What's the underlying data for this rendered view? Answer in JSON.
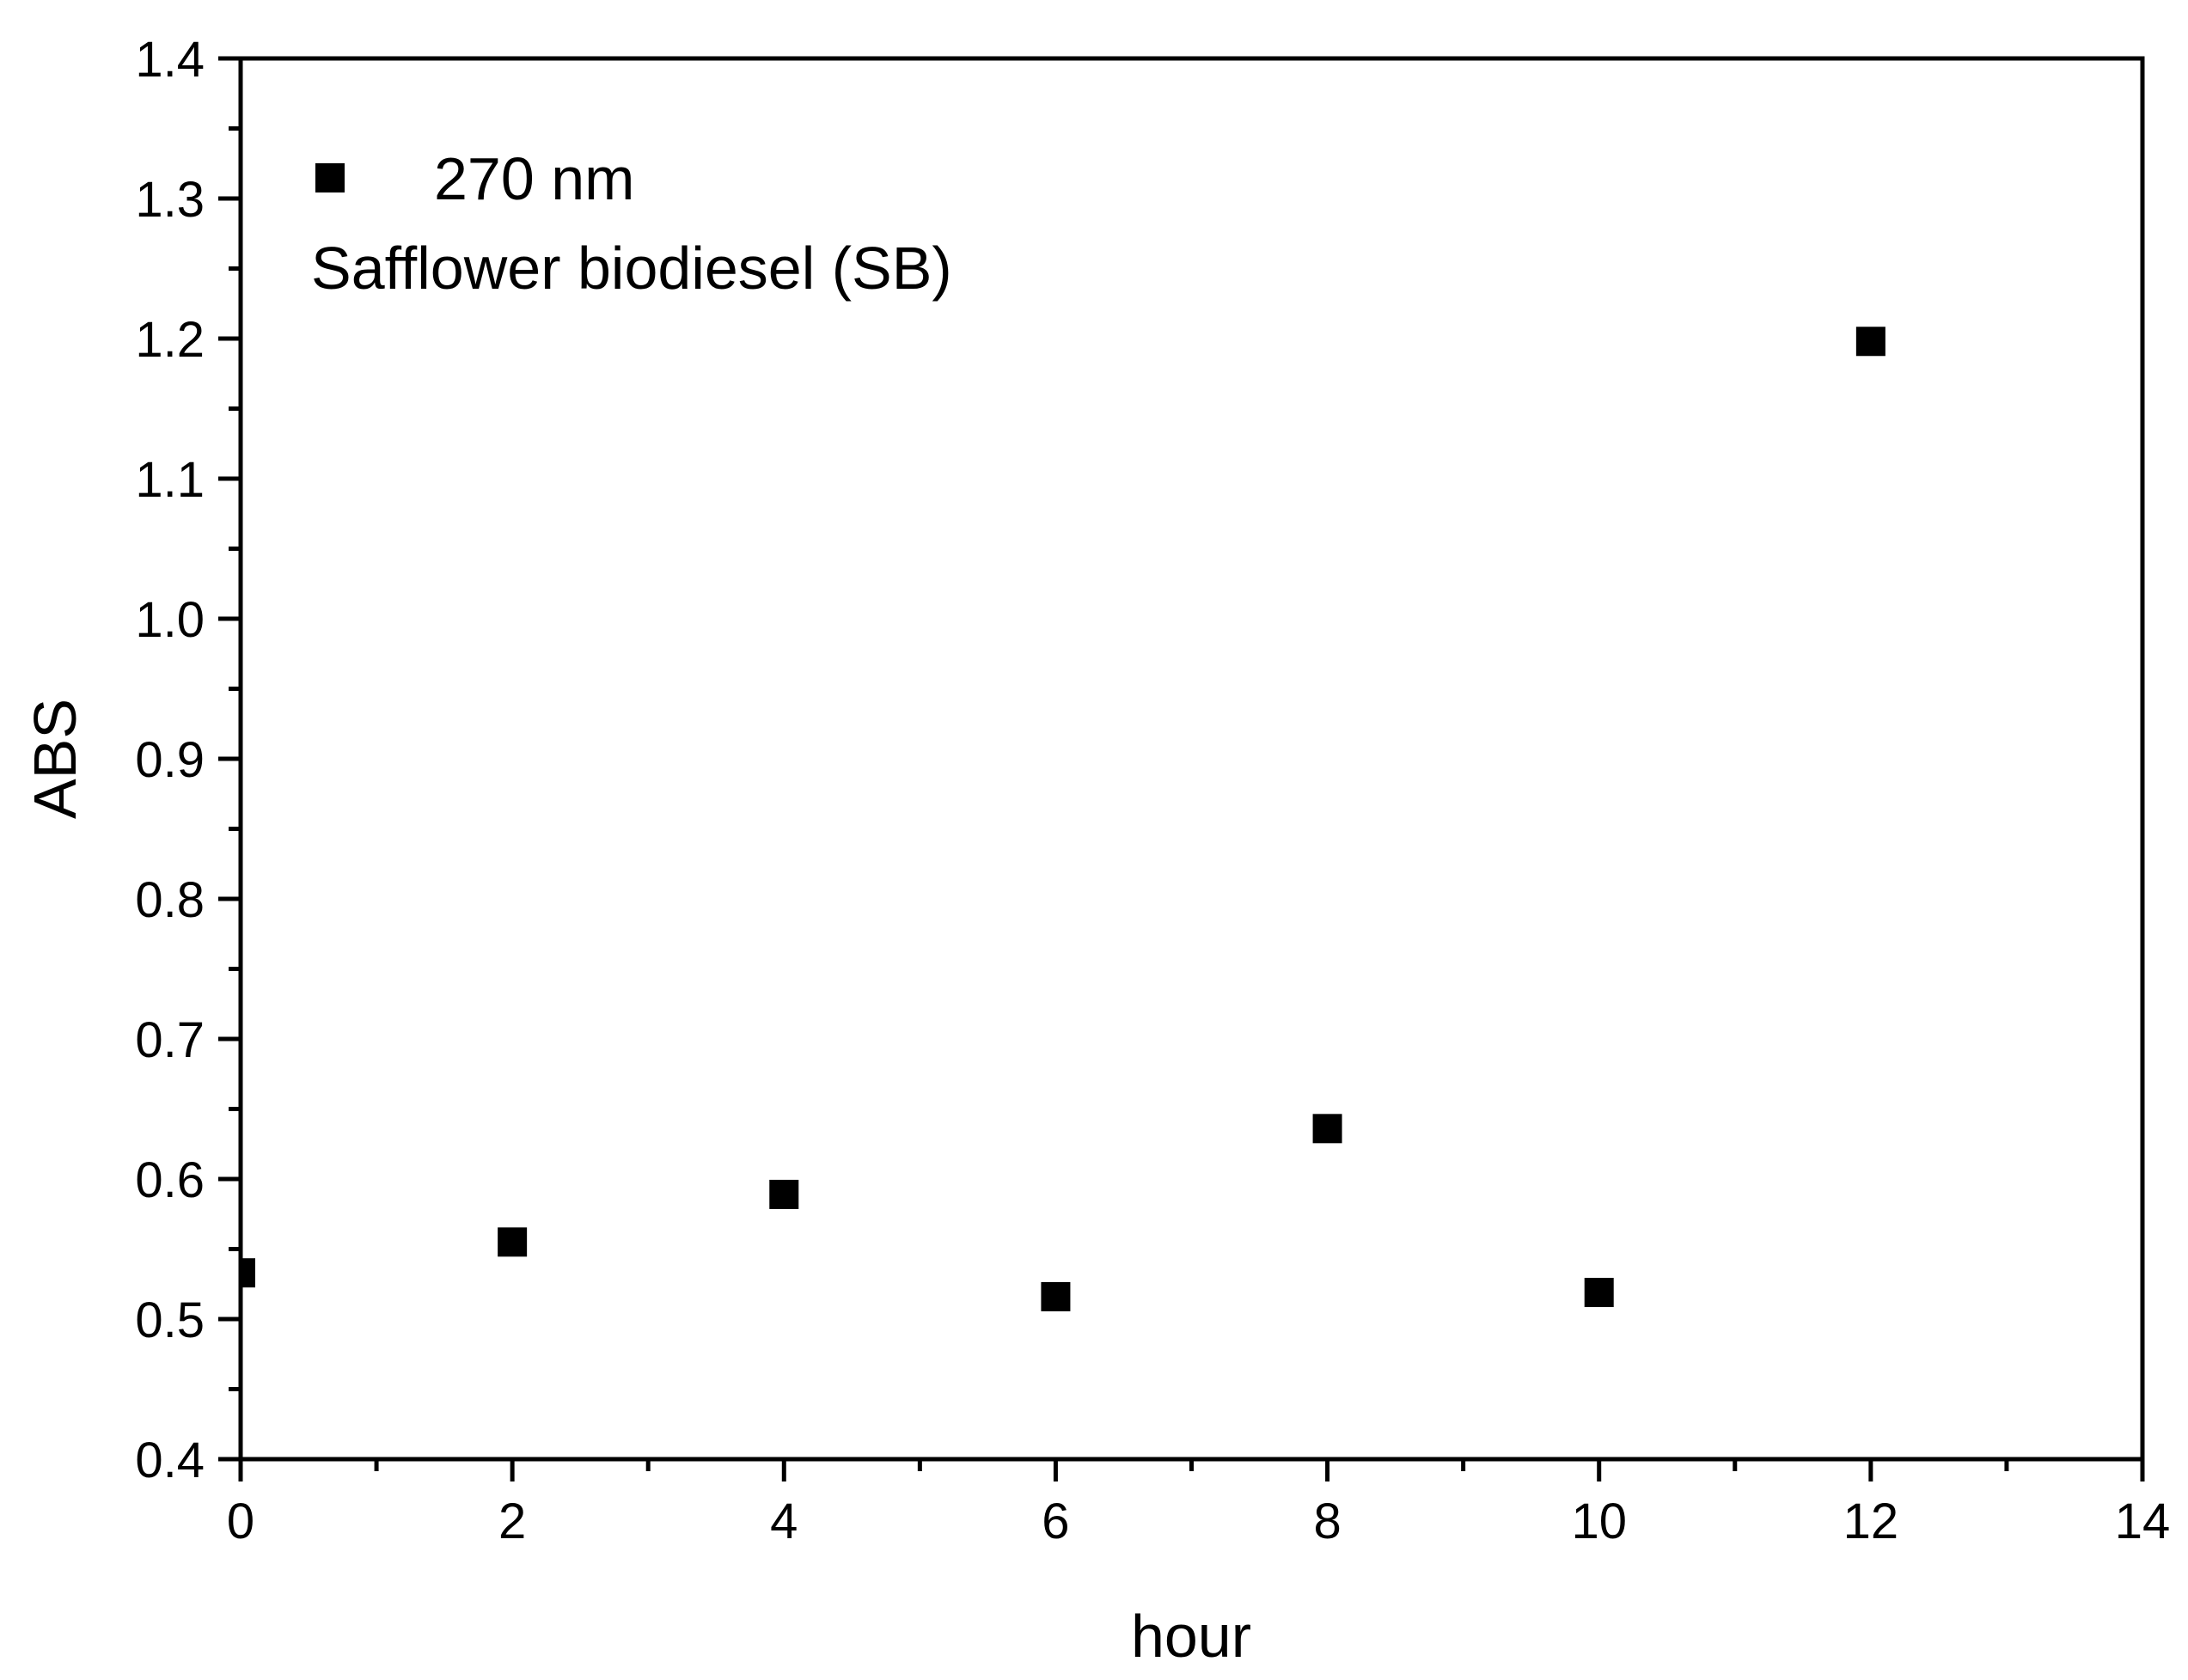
{
  "chart_data": {
    "type": "scatter",
    "xlabel": "hour",
    "ylabel": "ABS",
    "xlim": [
      0,
      14
    ],
    "ylim": [
      0.4,
      1.4
    ],
    "x_ticks": [
      "0",
      "2",
      "4",
      "6",
      "8",
      "10",
      "12",
      "14"
    ],
    "y_ticks": [
      "0.4",
      "0.5",
      "0.6",
      "0.7",
      "0.8",
      "0.9",
      "1.0",
      "1.1",
      "1.2",
      "1.3",
      "1.4"
    ],
    "grid": false,
    "legend_position": "top-left",
    "series": [
      {
        "name": "270 nm",
        "marker": "square",
        "color": "#000000",
        "x": [
          0,
          2,
          4,
          6,
          8,
          10,
          12
        ],
        "y": [
          0.533,
          0.555,
          0.589,
          0.516,
          0.636,
          0.519,
          1.198
        ]
      }
    ],
    "annotation": "Safflower biodiesel (SB)"
  }
}
